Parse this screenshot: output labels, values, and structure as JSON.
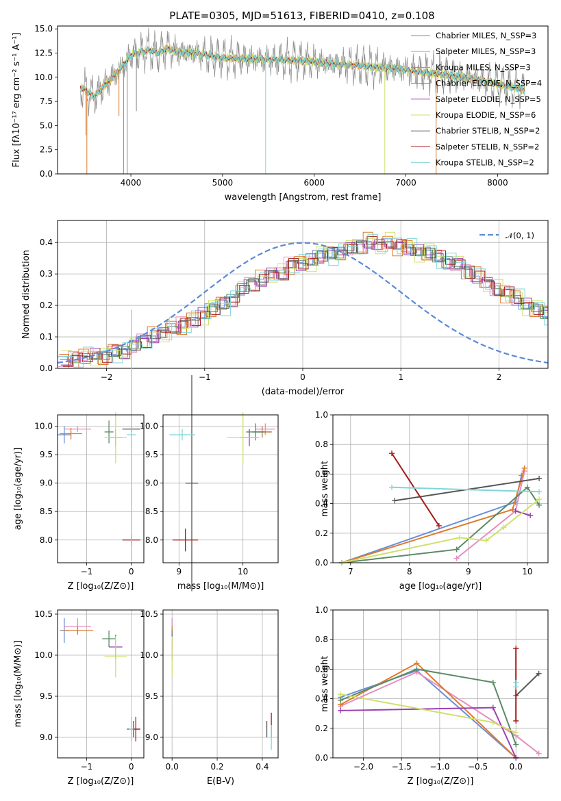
{
  "title": "PLATE=0305, MJD=51613, FIBERID=0410, z=0.108",
  "colors": [
    "#6a8fd6",
    "#e48fc0",
    "#de7a2c",
    "#5a8a66",
    "#9b3fb0",
    "#cfe06a",
    "#555555",
    "#a51c1c",
    "#7fd6d9"
  ],
  "chart_data": [
    {
      "id": "spectrum",
      "type": "line",
      "title": "PLATE=0305, MJD=51613, FIBERID=0410, z=0.108",
      "xlabel": "wavelength [Angstrom, rest frame]",
      "ylabel": "Flux [fλ10⁻¹⁷ erg cm⁻² s⁻¹ A⁻¹]",
      "xlim": [
        3200,
        8550
      ],
      "ylim": [
        0,
        15.3
      ],
      "xticks": [
        4000,
        5000,
        6000,
        7000,
        8000
      ],
      "yticks": [
        0.0,
        2.5,
        5.0,
        7.5,
        10.0,
        12.5,
        15.0
      ],
      "legend_position": "top-right",
      "legend": [
        {
          "label": "Chabrier MILES, N_SSP=3",
          "color": "#6a8fd6"
        },
        {
          "label": "Salpeter MILES, N_SSP=3",
          "color": "#e48fc0"
        },
        {
          "label": "Kroupa MILES, N_SSP=3",
          "color": "#de7a2c"
        },
        {
          "label": "Chabrier ELODIE, N_SSP=4",
          "color": "#5a8a66"
        },
        {
          "label": "Salpeter ELODIE, N_SSP=5",
          "color": "#9b3fb0"
        },
        {
          "label": "Kroupa ELODIE, N_SSP=6",
          "color": "#cfe06a"
        },
        {
          "label": "Chabrier STELIB, N_SSP=2",
          "color": "#555555"
        },
        {
          "label": "Salpeter STELIB, N_SSP=2",
          "color": "#a51c1c"
        },
        {
          "label": "Kroupa STELIB, N_SSP=2",
          "color": "#7fd6d9"
        }
      ],
      "continuum": {
        "x": [
          3450,
          3600,
          3750,
          3900,
          4000,
          4100,
          4200,
          4300,
          4400,
          4500,
          4700,
          5000,
          5300,
          5600,
          5900,
          6200,
          6500,
          6700,
          6900,
          7100,
          7400,
          7700,
          8000,
          8300
        ],
        "y": [
          9.0,
          8.0,
          9.5,
          11.0,
          12.3,
          12.6,
          12.8,
          12.5,
          13.0,
          12.6,
          12.5,
          12.0,
          11.9,
          11.8,
          11.7,
          11.4,
          11.2,
          11.0,
          10.9,
          10.6,
          10.3,
          9.9,
          9.3,
          8.7
        ]
      },
      "dropouts": [
        {
          "x": 3510,
          "y": 4.0,
          "color": "#de7a2c"
        },
        {
          "x": 3520,
          "y": 0.0,
          "color": "#de7a2c"
        },
        {
          "x": 3870,
          "y": 6.0,
          "color": "#de7a2c"
        },
        {
          "x": 3920,
          "y": 0.0,
          "color": "#888888"
        },
        {
          "x": 3960,
          "y": 0.0,
          "color": "#888888"
        },
        {
          "x": 4060,
          "y": 6.5,
          "color": "#888888"
        },
        {
          "x": 5470,
          "y": 0.0,
          "color": "#7fd6d9"
        },
        {
          "x": 6770,
          "y": 0.0,
          "color": "#cfe06a"
        },
        {
          "x": 7330,
          "y": 0.0,
          "color": "#de7a2c"
        },
        {
          "x": 7260,
          "y": 8.5,
          "color": "#de7a2c"
        }
      ]
    },
    {
      "id": "residuals",
      "type": "area",
      "xlabel": "(data-model)/error",
      "ylabel": "Normed distribution",
      "xlim": [
        -2.5,
        2.5
      ],
      "ylim": [
        0,
        0.47
      ],
      "xticks": [
        -2,
        -1,
        0,
        1,
        2
      ],
      "yticks": [
        0.0,
        0.1,
        0.2,
        0.3,
        0.4
      ],
      "legend_position": "top-right",
      "legend": [
        {
          "label": "𝒩(0, 1)",
          "color": "#5b8ad6"
        }
      ],
      "bin_width": 0.1,
      "bin_start": -2.5,
      "histogram": [
        0.025,
        0.03,
        0.035,
        0.04,
        0.038,
        0.05,
        0.055,
        0.07,
        0.09,
        0.1,
        0.11,
        0.13,
        0.14,
        0.15,
        0.17,
        0.19,
        0.2,
        0.22,
        0.25,
        0.27,
        0.28,
        0.3,
        0.3,
        0.33,
        0.33,
        0.34,
        0.36,
        0.36,
        0.37,
        0.38,
        0.39,
        0.4,
        0.39,
        0.4,
        0.39,
        0.38,
        0.37,
        0.37,
        0.35,
        0.34,
        0.33,
        0.31,
        0.29,
        0.27,
        0.25,
        0.24,
        0.22,
        0.2,
        0.19,
        0.17,
        0.15,
        0.14,
        0.12,
        0.11,
        0.1,
        0.08,
        0.07,
        0.06,
        0.05,
        0.045,
        0.04
      ],
      "histogram_jitter": [
        0.02,
        -0.015,
        0.01,
        -0.02,
        0.025,
        -0.01,
        0.015,
        -0.025,
        0.02,
        0.005,
        -0.02
      ],
      "gaussian": {
        "mean": 0,
        "sigma": 1
      }
    },
    {
      "id": "age-vs-Z",
      "type": "scatter",
      "xlabel": "Z [log₁₀(Z/Z⊙)]",
      "ylabel": "age  [log₁₀(age/yr)]",
      "xlim": [
        -1.65,
        0.28
      ],
      "ylim": [
        7.6,
        10.2
      ],
      "xticks": [
        -1,
        0
      ],
      "yticks": [
        8.0,
        8.5,
        9.0,
        9.5,
        10.0
      ],
      "crosses": [
        {
          "x": -1.5,
          "y": 9.85,
          "xerr": 0.15,
          "yerr": 0.15,
          "color": "#6a8fd6"
        },
        {
          "x": -1.2,
          "y": 9.95,
          "xerr": 0.3,
          "yerr": 0.05,
          "color": "#e48fc0"
        },
        {
          "x": -1.35,
          "y": 9.87,
          "xerr": 0.25,
          "yerr": 0.1,
          "color": "#de7a2c"
        },
        {
          "x": -0.5,
          "y": 9.9,
          "xerr": 0.1,
          "yerr": 0.2,
          "color": "#5a8a66"
        },
        {
          "x": -0.35,
          "y": 9.8,
          "xerr": 0.15,
          "yerr": 0.15,
          "color": "#9b3fb0"
        },
        {
          "x": -0.35,
          "y": 9.8,
          "xerr": 0.25,
          "yerr": 0.45,
          "color": "#cfe06a"
        },
        {
          "x": 0.0,
          "y": 9.95,
          "xerr": 0.2,
          "yerr": 0.05,
          "color": "#555555"
        },
        {
          "x": 0.0,
          "y": 8.0,
          "xerr": 0.2,
          "yerr": 0.1,
          "color": "#a51c1c"
        },
        {
          "x": 0.0,
          "y": 9.85,
          "xerr": 0.1,
          "yerr": 2.2,
          "color": "#7fd6d9"
        }
      ]
    },
    {
      "id": "age-vs-mass",
      "type": "scatter",
      "xlabel": "mass [log₁₀(M/M⊙)]",
      "ylabel": "",
      "xlim": [
        8.75,
        10.55
      ],
      "ylim": [
        7.6,
        10.2
      ],
      "xticks": [
        9,
        10
      ],
      "yticks": [
        8.0,
        8.5,
        9.0,
        9.5,
        10.0
      ],
      "crosses": [
        {
          "x": 10.3,
          "y": 9.9,
          "xerr": 0.15,
          "yerr": 0.1,
          "color": "#6a8fd6"
        },
        {
          "x": 10.35,
          "y": 9.95,
          "xerr": 0.15,
          "yerr": 0.1,
          "color": "#e48fc0"
        },
        {
          "x": 10.3,
          "y": 9.9,
          "xerr": 0.15,
          "yerr": 0.1,
          "color": "#de7a2c"
        },
        {
          "x": 10.2,
          "y": 9.9,
          "xerr": 0.15,
          "yerr": 0.15,
          "color": "#5a8a66"
        },
        {
          "x": 10.1,
          "y": 9.8,
          "xerr": 0.15,
          "yerr": 0.15,
          "color": "#9b3fb0"
        },
        {
          "x": 10.0,
          "y": 9.8,
          "xerr": 0.25,
          "yerr": 0.45,
          "color": "#cfe06a"
        },
        {
          "x": 9.2,
          "y": 9.0,
          "xerr": 0.1,
          "yerr": 1.9,
          "color": "#555555"
        },
        {
          "x": 9.1,
          "y": 8.0,
          "xerr": 0.2,
          "yerr": 0.2,
          "color": "#a51c1c"
        },
        {
          "x": 9.05,
          "y": 9.85,
          "xerr": 0.2,
          "yerr": 0.1,
          "color": "#7fd6d9"
        }
      ]
    },
    {
      "id": "massweight-vs-age",
      "type": "line",
      "xlabel": "age  [log₁₀(age/yr)]",
      "ylabel": "mass weight",
      "xlim": [
        6.7,
        10.35
      ],
      "ylim": [
        0,
        1.0
      ],
      "xticks": [
        7,
        8,
        9,
        10
      ],
      "yticks": [
        0.0,
        0.2,
        0.4,
        0.6,
        0.8,
        1.0
      ],
      "series": [
        {
          "color": "#6a8fd6",
          "x": [
            6.85,
            9.8,
            9.9
          ],
          "y": [
            0.0,
            0.41,
            0.59
          ]
        },
        {
          "color": "#e48fc0",
          "x": [
            8.8,
            9.8,
            9.95
          ],
          "y": [
            0.03,
            0.35,
            0.62
          ]
        },
        {
          "color": "#de7a2c",
          "x": [
            6.85,
            9.75,
            9.95
          ],
          "y": [
            0.0,
            0.36,
            0.64
          ]
        },
        {
          "color": "#5a8a66",
          "x": [
            6.85,
            8.8,
            10.0,
            10.2
          ],
          "y": [
            0.0,
            0.09,
            0.51,
            0.39
          ]
        },
        {
          "color": "#9b3fb0",
          "x": [
            9.8,
            10.05
          ],
          "y": [
            0.35,
            0.32
          ]
        },
        {
          "color": "#cfe06a",
          "x": [
            6.85,
            8.85,
            9.3,
            9.6,
            10.2
          ],
          "y": [
            0.0,
            0.17,
            0.15,
            0.24,
            0.43
          ]
        },
        {
          "color": "#555555",
          "x": [
            7.75,
            10.2
          ],
          "y": [
            0.42,
            0.57
          ]
        },
        {
          "color": "#a51c1c",
          "x": [
            7.7,
            8.5
          ],
          "y": [
            0.74,
            0.25
          ]
        },
        {
          "color": "#7fd6d9",
          "x": [
            7.7,
            10.2
          ],
          "y": [
            0.51,
            0.48
          ]
        }
      ]
    },
    {
      "id": "mass-vs-Z",
      "type": "scatter",
      "xlabel": "Z [log₁₀(Z/Z⊙)]",
      "ylabel": "mass [log₁₀(M/M⊙)]",
      "xlim": [
        -1.65,
        0.28
      ],
      "ylim": [
        8.75,
        10.55
      ],
      "xticks": [
        -1,
        0
      ],
      "yticks": [
        9.0,
        9.5,
        10.0,
        10.5
      ],
      "crosses": [
        {
          "x": -1.5,
          "y": 10.3,
          "xerr": 0.1,
          "yerr": 0.15,
          "color": "#6a8fd6"
        },
        {
          "x": -1.2,
          "y": 10.35,
          "xerr": 0.3,
          "yerr": 0.1,
          "color": "#e48fc0"
        },
        {
          "x": -1.2,
          "y": 10.3,
          "xerr": 0.35,
          "yerr": 0.05,
          "color": "#de7a2c"
        },
        {
          "x": -0.5,
          "y": 10.2,
          "xerr": 0.15,
          "yerr": 0.1,
          "color": "#5a8a66"
        },
        {
          "x": -0.35,
          "y": 10.1,
          "xerr": 0.15,
          "yerr": 0.15,
          "color": "#9b3fb0"
        },
        {
          "x": -0.35,
          "y": 9.98,
          "xerr": 0.25,
          "yerr": 0.25,
          "color": "#cfe06a"
        },
        {
          "x": 0.05,
          "y": 9.1,
          "xerr": 0.15,
          "yerr": 0.1,
          "color": "#555555"
        },
        {
          "x": 0.1,
          "y": 9.1,
          "xerr": 0.1,
          "yerr": 0.15,
          "color": "#a51c1c"
        },
        {
          "x": 0.0,
          "y": 9.1,
          "xerr": 0.05,
          "yerr": 0.15,
          "color": "#7fd6d9"
        }
      ]
    },
    {
      "id": "mass-vs-EBV",
      "type": "scatter",
      "xlabel": "E(B-V)",
      "ylabel": "",
      "xlim": [
        -0.04,
        0.47
      ],
      "ylim": [
        8.75,
        10.55
      ],
      "xticks": [
        0.0,
        0.2,
        0.4
      ],
      "yticks": [
        9.0,
        9.5,
        10.0,
        10.5
      ],
      "crosses": [
        {
          "x": 0.0,
          "y": 10.3,
          "xerr": 0.0,
          "yerr": 0.15,
          "color": "#6a8fd6"
        },
        {
          "x": 0.0,
          "y": 10.35,
          "xerr": 0.0,
          "yerr": 0.1,
          "color": "#e48fc0"
        },
        {
          "x": 0.0,
          "y": 10.3,
          "xerr": 0.0,
          "yerr": 0.05,
          "color": "#de7a2c"
        },
        {
          "x": 0.0,
          "y": 10.2,
          "xerr": 0.0,
          "yerr": 0.1,
          "color": "#5a8a66"
        },
        {
          "x": 0.0,
          "y": 10.1,
          "xerr": 0.0,
          "yerr": 0.15,
          "color": "#9b3fb0"
        },
        {
          "x": 0.0,
          "y": 9.98,
          "xerr": 0.0,
          "yerr": 0.25,
          "color": "#cfe06a"
        },
        {
          "x": 0.42,
          "y": 9.1,
          "xerr": 0.0,
          "yerr": 0.1,
          "color": "#555555"
        },
        {
          "x": 0.44,
          "y": 9.15,
          "xerr": 0.0,
          "yerr": 0.15,
          "color": "#a51c1c"
        },
        {
          "x": 0.44,
          "y": 9.0,
          "xerr": 0.0,
          "yerr": 0.15,
          "color": "#7fd6d9"
        }
      ]
    },
    {
      "id": "massweight-vs-Z",
      "type": "line",
      "xlabel": "Z [log₁₀(Z/Z⊙)]",
      "ylabel": "mass weight",
      "xlim": [
        -2.4,
        0.42
      ],
      "ylim": [
        0,
        1.0
      ],
      "xticks": [
        -2.0,
        -1.5,
        -1.0,
        -0.5,
        0.0
      ],
      "yticks": [
        0.0,
        0.2,
        0.4,
        0.6,
        0.8,
        1.0
      ],
      "series": [
        {
          "color": "#6a8fd6",
          "x": [
            -2.3,
            -1.3,
            0.0
          ],
          "y": [
            0.41,
            0.59,
            0.0
          ]
        },
        {
          "color": "#e48fc0",
          "x": [
            -2.3,
            -1.3,
            0.0,
            0.3
          ],
          "y": [
            0.35,
            0.58,
            0.15,
            0.03
          ]
        },
        {
          "color": "#de7a2c",
          "x": [
            -2.3,
            -1.3,
            0.0
          ],
          "y": [
            0.36,
            0.64,
            0.0
          ]
        },
        {
          "color": "#5a8a66",
          "x": [
            -2.3,
            -1.3,
            -0.3,
            0.0
          ],
          "y": [
            0.39,
            0.6,
            0.51,
            0.09
          ]
        },
        {
          "color": "#9b3fb0",
          "x": [
            -2.3,
            -0.3,
            0.0
          ],
          "y": [
            0.32,
            0.34,
            0.0
          ]
        },
        {
          "color": "#cfe06a",
          "x": [
            -2.3,
            -0.3,
            0.0
          ],
          "y": [
            0.43,
            0.24,
            0.17
          ]
        },
        {
          "color": "#555555",
          "x": [
            0.0,
            0.3
          ],
          "y": [
            0.42,
            0.57
          ]
        },
        {
          "color": "#a51c1c",
          "x": [
            0.0,
            0.0
          ],
          "y": [
            0.25,
            0.74
          ]
        },
        {
          "color": "#7fd6d9",
          "x": [
            0.0,
            0.0
          ],
          "y": [
            0.48,
            0.51
          ]
        }
      ]
    }
  ]
}
